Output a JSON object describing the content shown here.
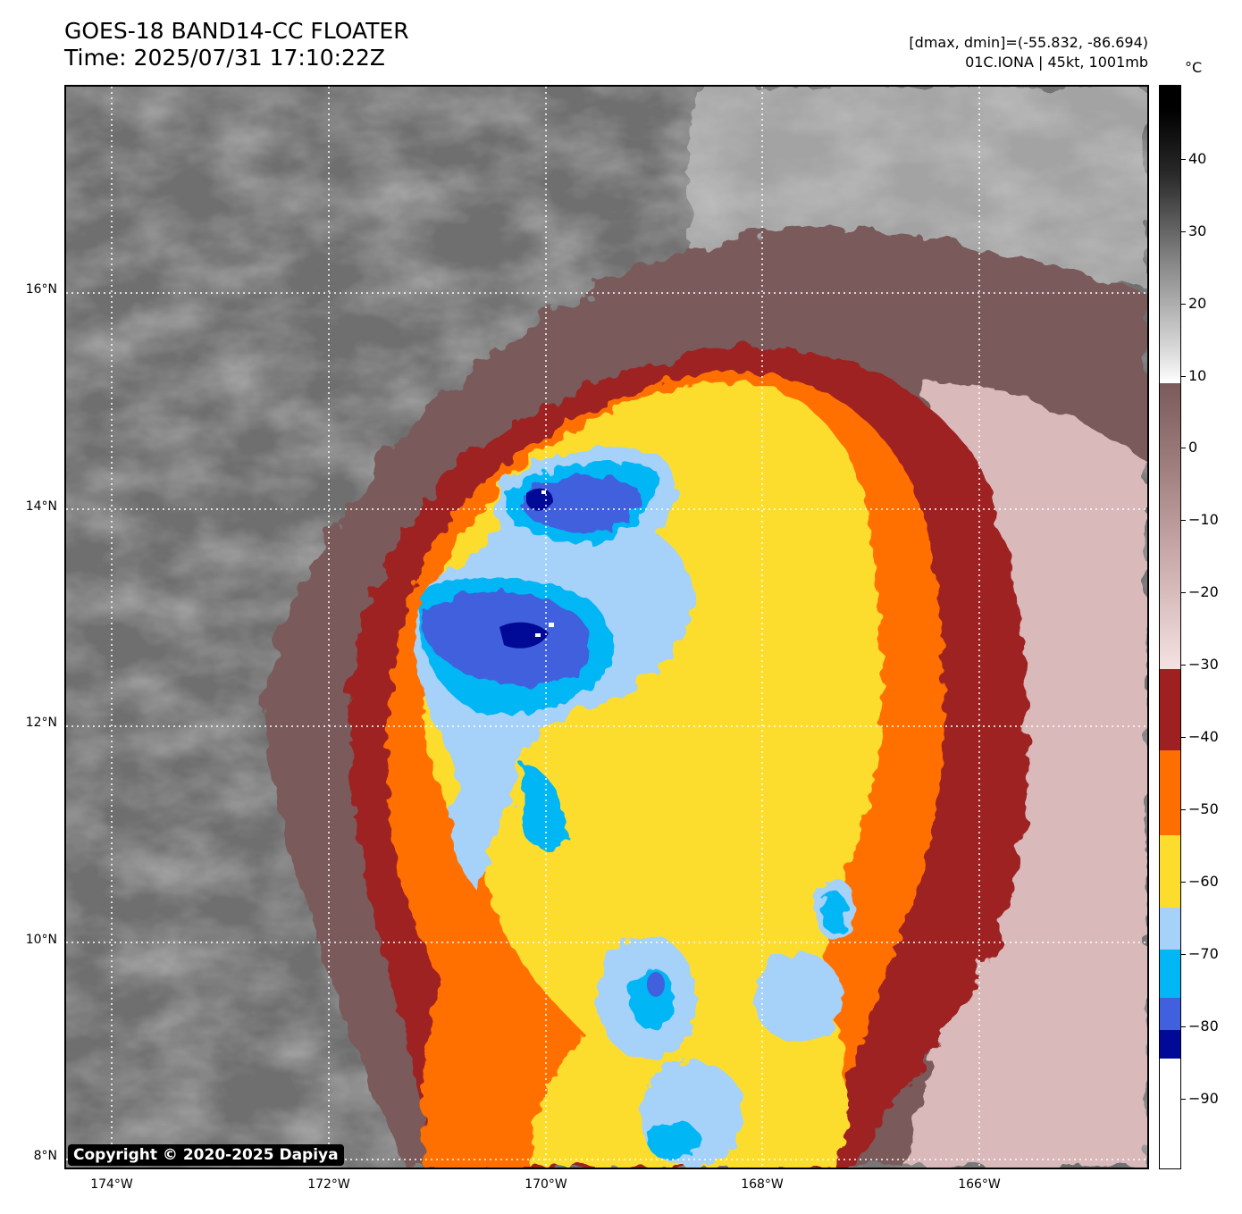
{
  "title": {
    "line1": "GOES-18 BAND14-CC FLOATER",
    "line2": "Time: 2025/07/31 17:10:22Z"
  },
  "info": {
    "range": "[dmax, dmin]=(-55.832, -86.694)",
    "storm": "01C.IONA | 45kt, 1001mb"
  },
  "copyright": "Copyright © 2020-2025 Dapiya",
  "lat_labels": [
    "16°N",
    "14°N",
    "12°N",
    "10°N",
    "8°N"
  ],
  "lon_labels": [
    "174°W",
    "172°W",
    "170°W",
    "168°W",
    "166°W"
  ],
  "colorbar": {
    "unit": "°C",
    "ticks": [
      "40",
      "30",
      "20",
      "10",
      "0",
      "−10",
      "−20",
      "−30",
      "−40",
      "−50",
      "−60",
      "−70",
      "−80",
      "−90"
    ],
    "colors": {
      "warm_black": "#000000",
      "gray_white": "#ffffff",
      "brown_mauve": "#7a5a5a",
      "pale_pink": "#f2dede",
      "dark_red": "#9e2020",
      "orange": "#ff6f00",
      "yellow": "#fcdd2e",
      "light_blue": "#a6d1f8",
      "cyan": "#00b6f5",
      "royal_blue": "#4060dd",
      "navy": "#000a96",
      "white": "#ffffff"
    }
  }
}
